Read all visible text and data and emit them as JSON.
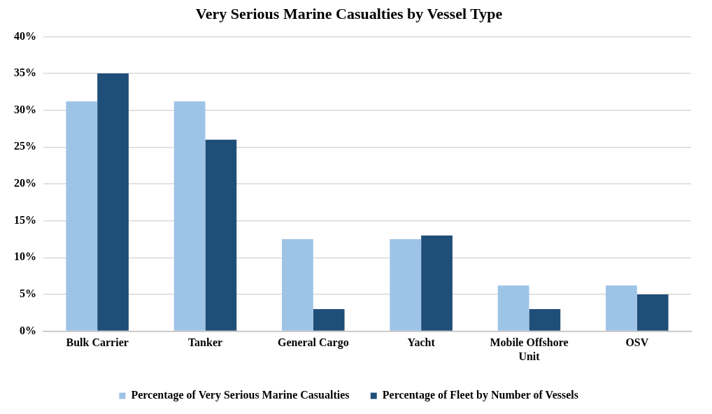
{
  "chart_data": {
    "type": "bar",
    "title": "Very Serious Marine Casualties by Vessel Type",
    "categories": [
      "Bulk Carrier",
      "Tanker",
      "General Cargo",
      "Yacht",
      "Mobile Offshore Unit",
      "OSV"
    ],
    "series": [
      {
        "name": "Percentage of Very Serious Marine Casualties",
        "color": "#9dc3e6",
        "values": [
          31.2,
          31.2,
          12.5,
          12.5,
          6.2,
          6.2
        ]
      },
      {
        "name": "Percentage of Fleet by Number of Vessels",
        "color": "#1f4e79",
        "values": [
          35,
          26,
          3,
          13,
          3,
          5
        ]
      }
    ],
    "ylim": [
      0,
      40
    ],
    "yticks": [
      {
        "value": 0,
        "label": "0%"
      },
      {
        "value": 5,
        "label": "5%"
      },
      {
        "value": 10,
        "label": "10%"
      },
      {
        "value": 15,
        "label": "15%"
      },
      {
        "value": 20,
        "label": "20%"
      },
      {
        "value": 25,
        "label": "25%"
      },
      {
        "value": 30,
        "label": "30%"
      },
      {
        "value": 35,
        "label": "35%"
      },
      {
        "value": 40,
        "label": "40%"
      }
    ],
    "grid": "y",
    "legend": "bottom"
  }
}
